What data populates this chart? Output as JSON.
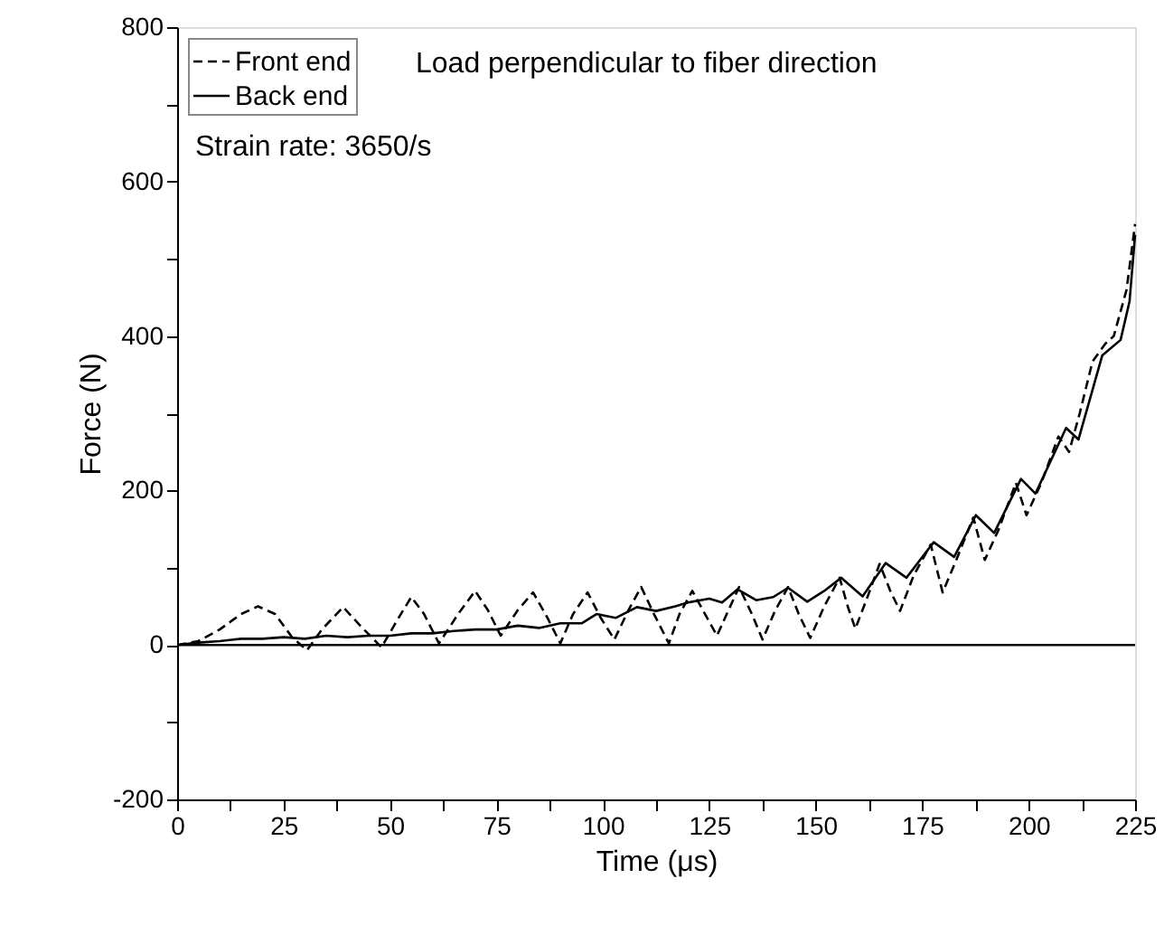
{
  "chart_data": {
    "type": "line",
    "xlabel": "Time (μs)",
    "ylabel": "Force (N)",
    "xlim": [
      0,
      225
    ],
    "ylim": [
      -200,
      800
    ],
    "xticks": [
      0,
      {
        "value": 12.5,
        "label": null
      },
      25,
      {
        "value": 37.5,
        "label": null
      },
      50,
      {
        "value": 62.5,
        "label": null
      },
      75,
      {
        "value": 87.5,
        "label": null
      },
      100,
      {
        "value": 112.5,
        "label": null
      },
      125,
      {
        "value": 137.5,
        "label": null
      },
      150,
      {
        "value": 162.5,
        "label": null
      },
      175,
      {
        "value": 187.5,
        "label": null
      },
      200,
      {
        "value": 212.5,
        "label": null
      },
      225
    ],
    "yticks": [
      -200,
      {
        "value": -100,
        "label": null
      },
      0,
      {
        "value": 100,
        "label": null
      },
      200,
      {
        "value": 300,
        "label": null
      },
      400,
      {
        "value": 500,
        "label": null
      },
      600,
      {
        "value": 700,
        "label": null
      },
      800
    ],
    "grid": false,
    "legend": "top left",
    "annotations": [
      "Load perpendicular to fiber direction",
      "Strain rate: 3650/s"
    ],
    "ref_lines": [
      {
        "axis": "y",
        "value": 0,
        "label": null,
        "color": "#000000",
        "line_style": "solid"
      }
    ],
    "series": [
      {
        "name": "Front end",
        "color": "#000000",
        "line_style": "dashed",
        "x": [
          0,
          5,
          10,
          15,
          19,
          23,
          27,
          30.5,
          34,
          39,
          43,
          48,
          52,
          55,
          58,
          61.5,
          66,
          70,
          73,
          76,
          80,
          83.6,
          87,
          90,
          93,
          96.4,
          99.5,
          102.7,
          106,
          109,
          112,
          115.5,
          118,
          121,
          124,
          126.8,
          129.5,
          132,
          135,
          137.5,
          140.5,
          143.5,
          146,
          148.7,
          152,
          155.6,
          157.5,
          159.3,
          162,
          165,
          167.5,
          169.8,
          173,
          177,
          179.8,
          183,
          187,
          189.7,
          193,
          197,
          199.5,
          203,
          207,
          209.5,
          212,
          215,
          218,
          220,
          223,
          225
        ],
        "values": [
          0,
          5,
          20,
          40,
          50,
          40,
          10,
          -7,
          20,
          49,
          25,
          -3,
          35,
          62,
          40,
          2,
          40,
          70,
          45,
          12,
          45,
          68,
          35,
          2,
          40,
          68,
          35,
          7,
          45,
          75,
          40,
          2,
          40,
          70,
          40,
          12,
          45,
          75,
          40,
          7,
          45,
          75,
          40,
          9,
          50,
          87,
          50,
          21,
          60,
          105,
          70,
          44,
          90,
          130,
          68,
          110,
          165,
          110,
          150,
          210,
          168,
          210,
          270,
          250,
          300,
          367,
          390,
          400,
          460,
          545
        ]
      },
      {
        "name": "Back end",
        "color": "#000000",
        "line_style": "solid",
        "x": [
          0,
          5,
          10,
          15,
          20,
          25,
          30,
          35,
          40,
          45,
          50,
          55,
          60,
          65,
          70,
          75,
          80,
          85,
          90,
          95,
          98.5,
          103,
          108,
          112.5,
          117,
          120,
          125,
          128,
          131.6,
          136,
          140,
          143.5,
          148,
          152,
          156,
          161,
          166.4,
          171.3,
          177.7,
          182.5,
          187.6,
          191.9,
          198.2,
          201.6,
          208.8,
          211.7,
          217.3,
          221.6,
          223.7,
          225
        ],
        "values": [
          0,
          3,
          5,
          8,
          8,
          10,
          8,
          12,
          10,
          12,
          12,
          15,
          15,
          18,
          20,
          20,
          25,
          22,
          28,
          28,
          40,
          35,
          49,
          44,
          50,
          55,
          60,
          55,
          72,
          58,
          62,
          74,
          56,
          70,
          87,
          63,
          106,
          87,
          133,
          114,
          168,
          145,
          215,
          196,
          281,
          266,
          375,
          395,
          445,
          531
        ]
      }
    ]
  }
}
